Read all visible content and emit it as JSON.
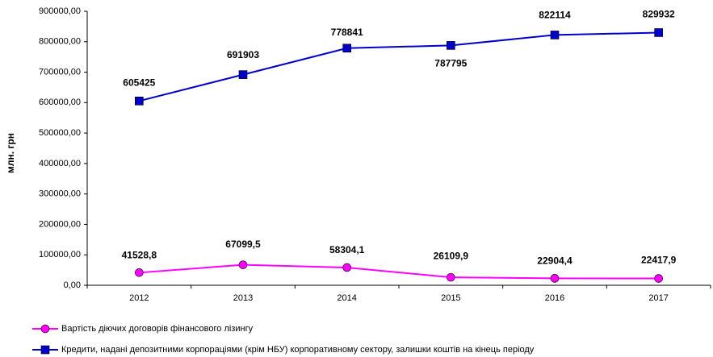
{
  "chart_data": {
    "type": "line",
    "ylabel": "млн. грн",
    "categories": [
      "2012",
      "2013",
      "2014",
      "2015",
      "2016",
      "2017"
    ],
    "ylim": [
      0,
      900000
    ],
    "yticks": [
      {
        "value": 0,
        "label": "0,00"
      },
      {
        "value": 100000,
        "label": "100000,00"
      },
      {
        "value": 200000,
        "label": "200000,00"
      },
      {
        "value": 300000,
        "label": "300000,00"
      },
      {
        "value": 400000,
        "label": "400000,00"
      },
      {
        "value": 500000,
        "label": "500000,00"
      },
      {
        "value": 600000,
        "label": "600000,00"
      },
      {
        "value": 700000,
        "label": "700000,00"
      },
      {
        "value": 800000,
        "label": "800000,00"
      },
      {
        "value": 900000,
        "label": "900000,00"
      }
    ],
    "series": [
      {
        "name": "Вартість діючих договорів фінансового лізингу",
        "color": "#ff00ff",
        "marker": "circle",
        "values": [
          41528.8,
          67099.5,
          58304.1,
          26109.9,
          22904.4,
          22417.9
        ],
        "value_labels": [
          "41528,8",
          "67099,5",
          "58304,1",
          "26109,9",
          "22904,4",
          "22417,9"
        ]
      },
      {
        "name": "Кредити, надані депозитними корпораціями (крім НБУ) корпоративному сектору, залишки коштів на кінець періоду",
        "color": "#0000cc",
        "marker": "square",
        "values": [
          605425,
          691903,
          778841,
          787795,
          822114,
          829932
        ]
      }
    ]
  }
}
